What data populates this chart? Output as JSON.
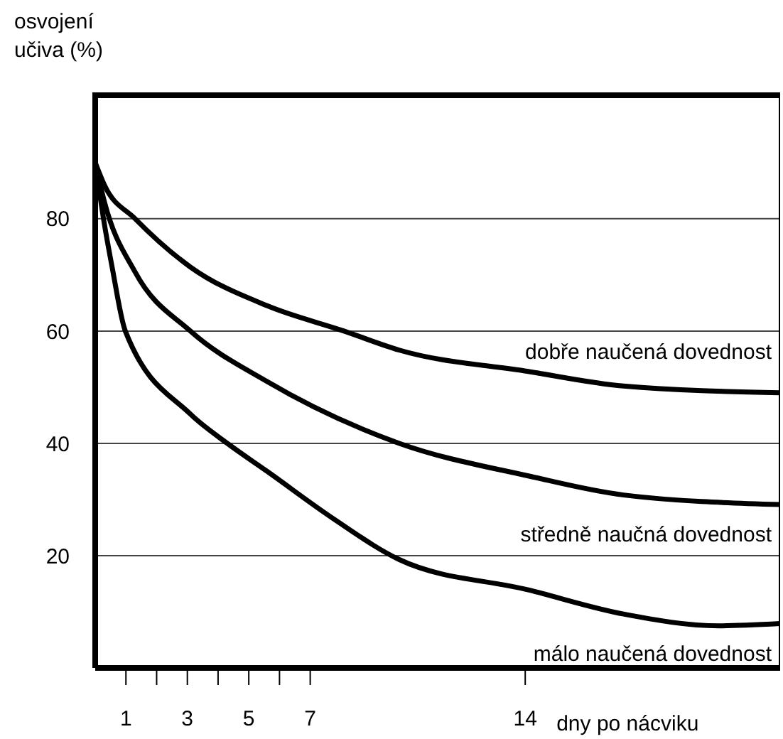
{
  "chart_data": {
    "type": "line",
    "xlabel": "dny po nácviku",
    "ylabel": "osvojení učiva (%)",
    "xlim": [
      0,
      22.3
    ],
    "xticks": [
      1,
      {
        "value": 2,
        "label": null
      },
      3,
      {
        "value": 4,
        "label": null
      },
      5,
      {
        "value": 6,
        "label": null
      },
      7,
      14
    ],
    "ylim": [
      0,
      102
    ],
    "yticks": [
      20,
      40,
      60,
      80
    ],
    "grid": "y",
    "legend": false,
    "marker": "none",
    "line_style": "solid",
    "series": [
      {
        "name": "dobře naučená dovednost",
        "color": "#000000",
        "x": [
          0,
          0.3,
          1.3,
          3.1,
          5.6,
          8.1,
          9.9,
          14.1,
          17.2,
          22.3
        ],
        "values": [
          90,
          86,
          80,
          71.4,
          64.5,
          60,
          56.6,
          52.8,
          50.2,
          49
        ]
      },
      {
        "name": "středně naučná dovednost",
        "color": "#000000",
        "x": [
          0,
          0.3,
          1.3,
          3.1,
          5.6,
          9.9,
          14.1,
          17.2,
          22.3
        ],
        "values": [
          90,
          83,
          70.5,
          60,
          51,
          40,
          34.2,
          30.8,
          29.1
        ]
      },
      {
        "name": "málo naučená dovednost",
        "color": "#000000",
        "x": [
          0,
          0.3,
          0.55,
          0.98,
          3.1,
          4.3,
          5.6,
          7.75,
          9.9,
          14.1,
          17.2,
          20.3,
          22.3
        ],
        "values": [
          90,
          79,
          71.4,
          60,
          45.2,
          40,
          35,
          26.6,
          19.3,
          13.9,
          9.6,
          7.5,
          7.9
        ]
      }
    ]
  }
}
